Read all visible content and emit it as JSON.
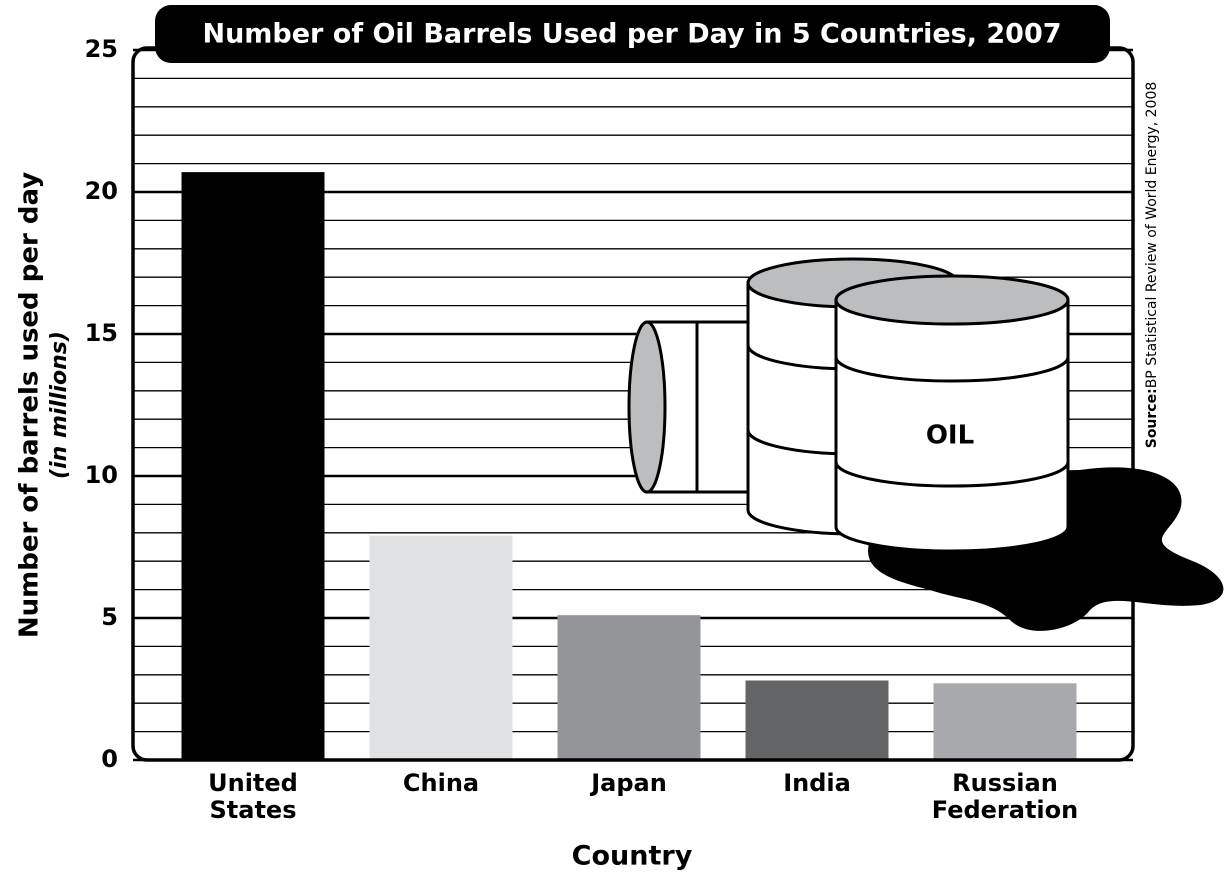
{
  "chart_data": {
    "type": "bar",
    "title": "Number of Oil Barrels Used per Day in 5 Countries, 2007",
    "y_label": "Number of barrels used per day",
    "y_label_sub": "(in millions)",
    "x_label": "Country",
    "source_label": "Source:",
    "source": "BP Statistical Review of World Energy, 2008",
    "illustration_label": "OIL",
    "categories": [
      "United States",
      "China",
      "Japan",
      "India",
      "Russian Federation"
    ],
    "values": [
      20.7,
      7.9,
      5.1,
      2.8,
      2.7
    ],
    "colors": [
      "#000000",
      "#e0e1e2",
      "#939598",
      "#636466",
      "#a7a9ac"
    ],
    "ylim": [
      0,
      25
    ],
    "yticks": [
      0,
      5,
      10,
      15,
      20,
      25
    ],
    "grid": true,
    "minor_grid_step": 1
  }
}
